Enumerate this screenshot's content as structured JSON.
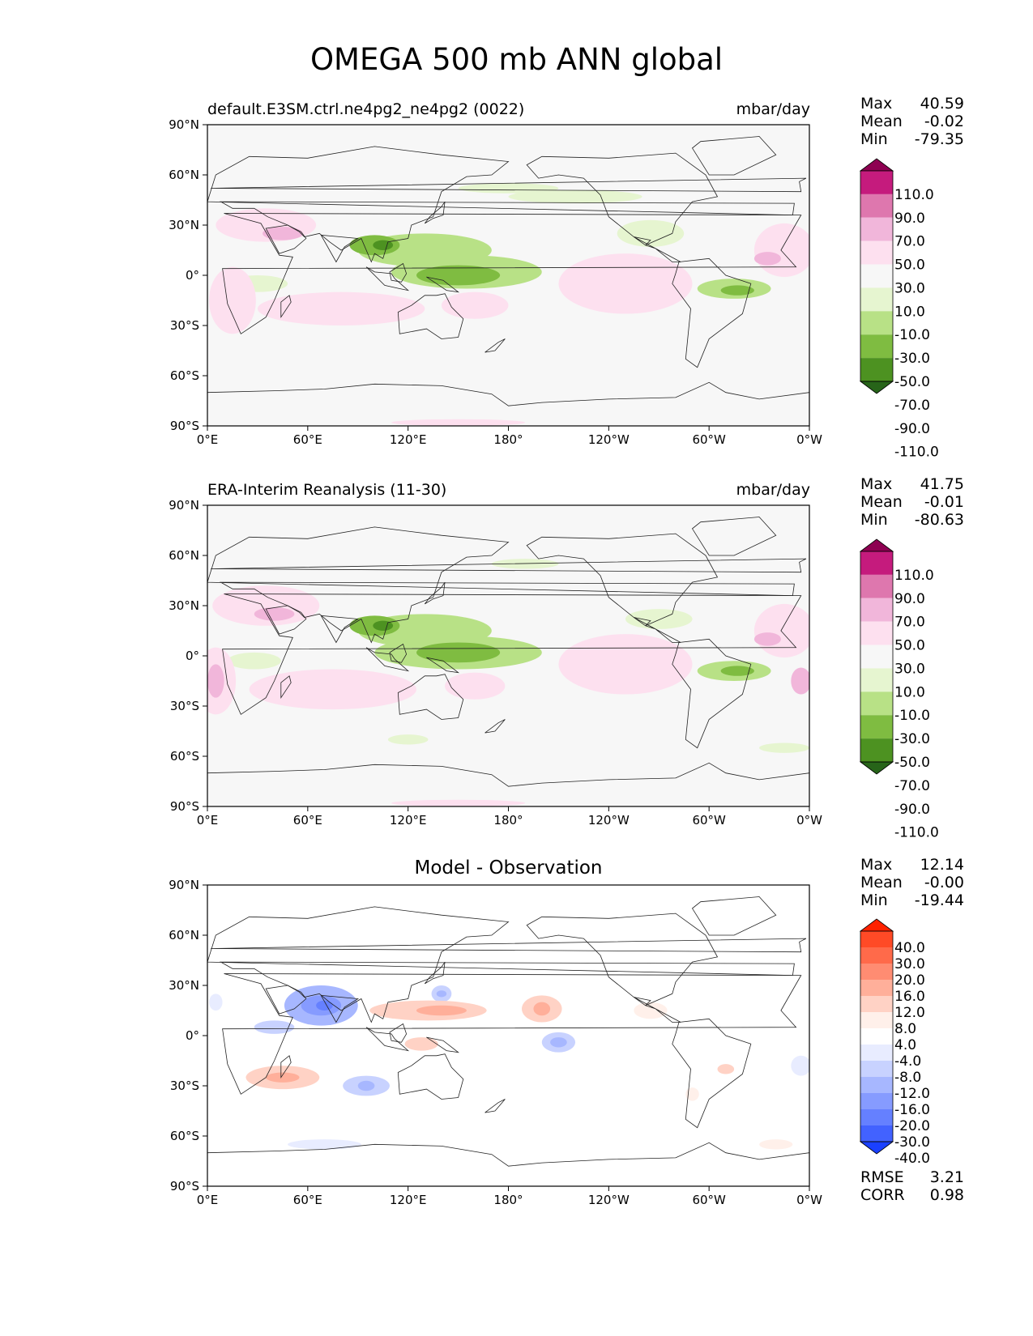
{
  "figure_title": "OMEGA 500 mb ANN global",
  "lat_labels": [
    "90°N",
    "60°N",
    "30°N",
    "0°",
    "30°S",
    "60°S",
    "90°S"
  ],
  "lon_labels": [
    "0°E",
    "60°E",
    "120°E",
    "180°",
    "120°W",
    "60°W",
    "0°W"
  ],
  "panels": [
    {
      "title_left": "default.E3SM.ctrl.ne4pg2_ne4pg2 (0022)",
      "title_right": "mbar/day",
      "stats": [
        {
          "label": "Max",
          "value": "40.59"
        },
        {
          "label": "Mean",
          "value": "-0.02"
        },
        {
          "label": "Min",
          "value": "-79.35"
        }
      ],
      "colorbar_labels": [
        "110.0",
        "90.0",
        "70.0",
        "50.0",
        "30.0",
        "10.0",
        "-10.0",
        "-30.0",
        "-50.0",
        "-70.0",
        "-90.0",
        "-110.0"
      ]
    },
    {
      "title_left": "ERA-Interim Reanalysis (11-30)",
      "title_right": "mbar/day",
      "stats": [
        {
          "label": "Max",
          "value": "41.75"
        },
        {
          "label": "Mean",
          "value": "-0.01"
        },
        {
          "label": "Min",
          "value": "-80.63"
        }
      ],
      "colorbar_labels": [
        "110.0",
        "90.0",
        "70.0",
        "50.0",
        "30.0",
        "10.0",
        "-10.0",
        "-30.0",
        "-50.0",
        "-70.0",
        "-90.0",
        "-110.0"
      ]
    },
    {
      "title_center": "Model - Observation",
      "stats": [
        {
          "label": "Max",
          "value": "12.14"
        },
        {
          "label": "Mean",
          "value": "-0.00"
        },
        {
          "label": "Min",
          "value": "-19.44"
        }
      ],
      "colorbar_labels": [
        "40.0",
        "30.0",
        "20.0",
        "16.0",
        "12.0",
        "8.0",
        "4.0",
        "-4.0",
        "-8.0",
        "-12.0",
        "-16.0",
        "-20.0",
        "-30.0",
        "-40.0"
      ],
      "metrics": [
        {
          "label": "RMSE",
          "value": "3.21"
        },
        {
          "label": "CORR",
          "value": "0.98"
        }
      ]
    }
  ],
  "colors": {
    "omega_scale": [
      "#8e0152",
      "#c51b7d",
      "#de77ae",
      "#f1b6da",
      "#fde0ef",
      "#f7f7f7",
      "#e6f5d0",
      "#b8e186",
      "#7fbc41",
      "#4d9221",
      "#276419"
    ],
    "diff_scale": [
      "#ff2200",
      "#ff4a26",
      "#ff6a4a",
      "#ff8c72",
      "#ffaf9a",
      "#ffd2c5",
      "#fff0ea",
      "#ffffff",
      "#e8ecff",
      "#c8d2ff",
      "#a7b7ff",
      "#869bff",
      "#6580ff",
      "#4262ff",
      "#1a40ff"
    ]
  }
}
